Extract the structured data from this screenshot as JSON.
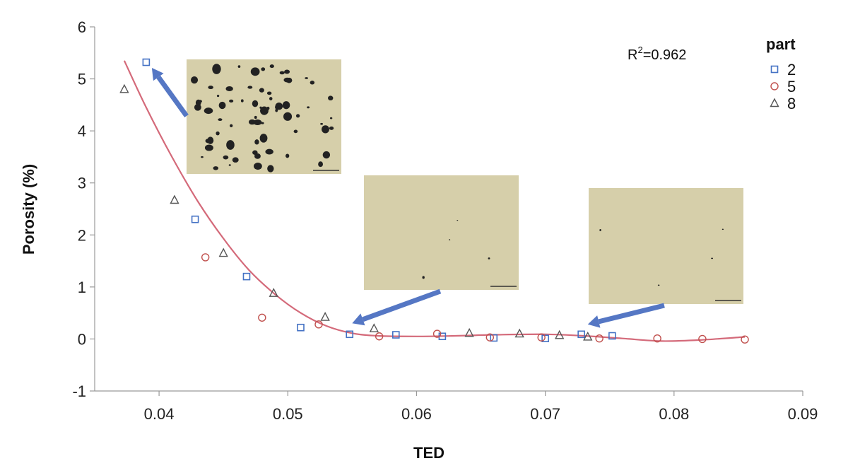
{
  "chart_data": {
    "type": "scatter",
    "xlabel": "TED",
    "ylabel": "Porosity (%)",
    "xlim": [
      0.035,
      0.09
    ],
    "ylim": [
      -1,
      6
    ],
    "x_ticks": [
      "0.04",
      "0.05",
      "0.06",
      "0.07",
      "0.08",
      "0.09"
    ],
    "y_ticks": [
      "-1",
      "0",
      "1",
      "2",
      "3",
      "4",
      "5",
      "6"
    ],
    "legend_title": "part",
    "legend_position": "top-right",
    "annotation": {
      "prefix": "R",
      "superscript": "2",
      "suffix": "=0.962"
    },
    "series": [
      {
        "name": "2",
        "marker": "square",
        "color": "#4472c4",
        "points": [
          [
            0.039,
            5.32
          ],
          [
            0.0428,
            2.3
          ],
          [
            0.0468,
            1.2
          ],
          [
            0.051,
            0.22
          ],
          [
            0.0548,
            0.09
          ],
          [
            0.0584,
            0.08
          ],
          [
            0.062,
            0.05
          ],
          [
            0.066,
            0.02
          ],
          [
            0.07,
            0.01
          ],
          [
            0.0728,
            0.09
          ],
          [
            0.0752,
            0.06
          ]
        ]
      },
      {
        "name": "5",
        "marker": "circle",
        "color": "#c0504d",
        "points": [
          [
            0.0436,
            1.57
          ],
          [
            0.048,
            0.41
          ],
          [
            0.0524,
            0.28
          ],
          [
            0.0571,
            0.05
          ],
          [
            0.0616,
            0.1
          ],
          [
            0.0657,
            0.03
          ],
          [
            0.0697,
            0.03
          ],
          [
            0.0742,
            0.01
          ],
          [
            0.0787,
            0.01
          ],
          [
            0.0822,
            0.0
          ],
          [
            0.0855,
            -0.01
          ]
        ]
      },
      {
        "name": "8",
        "marker": "triangle",
        "color": "#555555",
        "points": [
          [
            0.0373,
            4.8
          ],
          [
            0.0412,
            2.67
          ],
          [
            0.045,
            1.65
          ],
          [
            0.0489,
            0.88
          ],
          [
            0.0529,
            0.42
          ],
          [
            0.0567,
            0.2
          ],
          [
            0.0641,
            0.11
          ],
          [
            0.068,
            0.1
          ],
          [
            0.0711,
            0.07
          ],
          [
            0.0733,
            0.04
          ]
        ]
      }
    ],
    "fit_curve": {
      "color": "#d46a7a",
      "points": [
        [
          0.0373,
          5.35
        ],
        [
          0.039,
          4.45
        ],
        [
          0.041,
          3.5
        ],
        [
          0.043,
          2.65
        ],
        [
          0.045,
          1.93
        ],
        [
          0.047,
          1.32
        ],
        [
          0.049,
          0.86
        ],
        [
          0.051,
          0.5
        ],
        [
          0.053,
          0.25
        ],
        [
          0.055,
          0.11
        ],
        [
          0.057,
          0.06
        ],
        [
          0.06,
          0.05
        ],
        [
          0.063,
          0.06
        ],
        [
          0.066,
          0.08
        ],
        [
          0.07,
          0.09
        ],
        [
          0.073,
          0.06
        ],
        [
          0.076,
          0.01
        ],
        [
          0.079,
          -0.04
        ],
        [
          0.082,
          -0.02
        ],
        [
          0.0855,
          0.04
        ]
      ]
    },
    "micrographs": [
      {
        "name": "micrograph-high-porosity",
        "pore_density": "high",
        "points_to": [
          0.039,
          5.32
        ]
      },
      {
        "name": "micrograph-low-porosity-middle",
        "pore_density": "low",
        "points_to": [
          0.055,
          0.22
        ]
      },
      {
        "name": "micrograph-low-porosity-right",
        "pore_density": "low",
        "points_to": [
          0.0733,
          0.2
        ]
      }
    ],
    "colors": {
      "arrow": "#5577c4",
      "micrograph_bg": "#d6cfaa",
      "pore": "#222222"
    }
  }
}
